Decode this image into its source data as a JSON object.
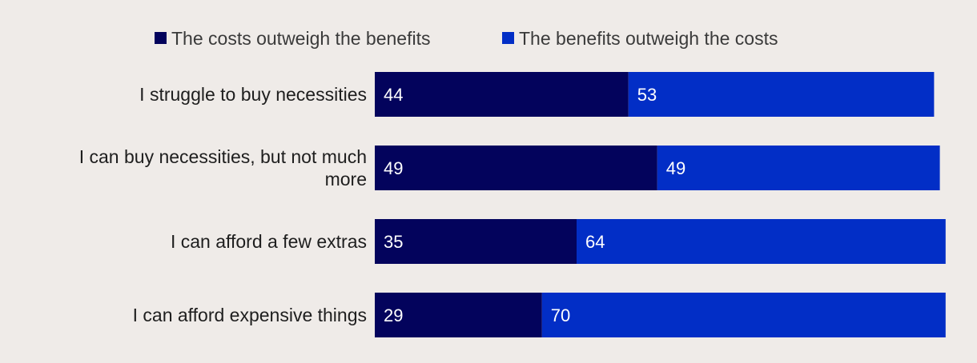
{
  "chart_data": {
    "type": "bar",
    "orientation": "horizontal",
    "stacked": true,
    "categories": [
      [
        "I struggle to buy necessities"
      ],
      [
        "I can buy necessities, but not much",
        "more"
      ],
      [
        "I can afford a few extras"
      ],
      [
        "I can afford expensive things"
      ]
    ],
    "series": [
      {
        "name": "The costs outweigh the benefits",
        "values": [
          44,
          49,
          35,
          29
        ],
        "color": "#03035c"
      },
      {
        "name": "The benefits outweigh the costs",
        "values": [
          53,
          49,
          64,
          70
        ],
        "color": "#022ec6"
      }
    ],
    "xlim": [
      0,
      100
    ],
    "grid": false,
    "legend": "top-center",
    "title": "",
    "xlabel": "",
    "ylabel": ""
  }
}
